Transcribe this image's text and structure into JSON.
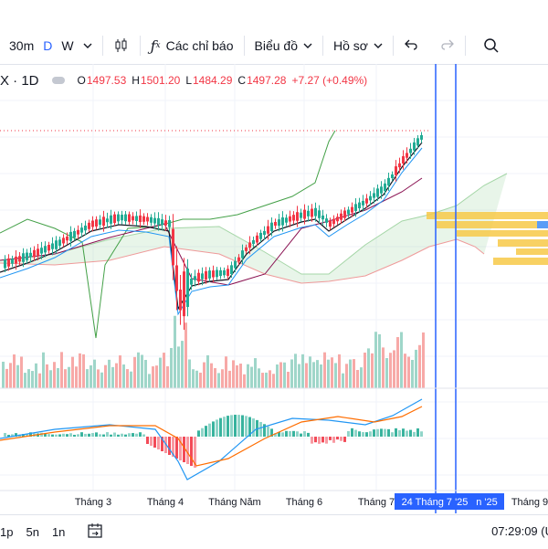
{
  "toolbar": {
    "interval_30m": "30m",
    "interval_d": "D",
    "interval_w": "W",
    "indicators_label": "Các chỉ báo",
    "chart_menu_label": "Biểu đồ",
    "profile_menu_label": "Hồ sơ",
    "active_color": "#2962ff"
  },
  "symbol": {
    "title": "X · 1D",
    "open_key": "O",
    "open_val": "1497.53",
    "high_key": "H",
    "high_val": "1501.20",
    "low_key": "L",
    "low_val": "1484.29",
    "close_key": "C",
    "close_val": "1497.28",
    "change": "+7.27 (+0.49%)"
  },
  "xaxis": {
    "m3": "Tháng 3",
    "m4": "Tháng 4",
    "m5": "Tháng Năm",
    "m6": "Tháng 6",
    "m7": "Tháng 7",
    "crosshair_date": "24 Tháng 7 '25",
    "partial": "n '25",
    "m9": "Tháng 9"
  },
  "bottom": {
    "r1": "1p",
    "r2": "5n",
    "r3": "1n",
    "clock": "07:29:09 (U"
  },
  "colors": {
    "up": "#22ab94",
    "down": "#f23645",
    "up_vol": "#9fd6c9",
    "down_vol": "#f7a9a7",
    "cloud_green": "#a5d6a7",
    "cloud_red": "#ef9a9a",
    "volume_profile": "#f7c948",
    "crosshair": "#2962ff"
  },
  "chart_data": {
    "type": "candlestick",
    "indicators": [
      "Ichimoku Cloud",
      "Volume",
      "MACD",
      "Volume Profile"
    ]
  }
}
